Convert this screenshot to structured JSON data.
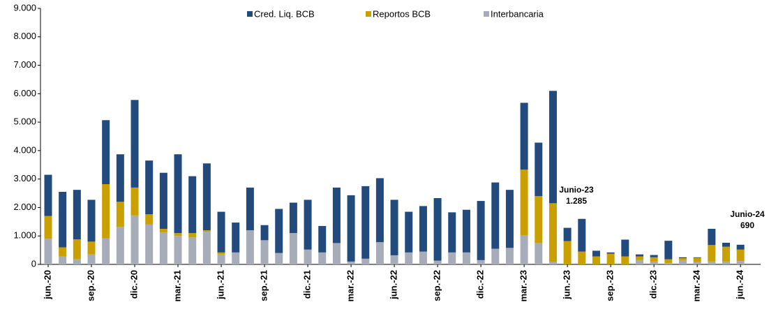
{
  "chart_data": {
    "type": "stacked_bar",
    "categories": [
      "jun.-20",
      null,
      null,
      "sep.-20",
      null,
      null,
      "dic.-20",
      null,
      null,
      "mar.-21",
      null,
      null,
      "jun.-21",
      null,
      null,
      "sep.-21",
      null,
      null,
      "dic.-21",
      null,
      null,
      "mar.-22",
      null,
      null,
      "jun.-22",
      null,
      null,
      "sep.-22",
      null,
      null,
      "dic.-22",
      null,
      null,
      "mar.-23",
      null,
      null,
      "jun.-23",
      null,
      null,
      "sep.-23",
      null,
      null,
      "dic.-23",
      null,
      null,
      "mar.-24",
      null,
      null,
      "jun.-24"
    ],
    "series": [
      {
        "name": "Cred. Liq. BCB",
        "color": "#234a7c",
        "values": [
          1450,
          1950,
          1740,
          1470,
          2250,
          1670,
          3080,
          1890,
          1970,
          2770,
          2000,
          2350,
          1430,
          1050,
          1500,
          530,
          1550,
          1070,
          1750,
          930,
          1950,
          2330,
          2550,
          2250,
          1950,
          1430,
          1600,
          2200,
          1410,
          1500,
          2080,
          2330,
          2040,
          2350,
          1880,
          3950,
          465,
          1150,
          200,
          40,
          590,
          70,
          80,
          650,
          30,
          20,
          570,
          140,
          170
        ]
      },
      {
        "name": "Reportos BCB",
        "color": "#c9a000",
        "values": [
          800,
          320,
          700,
          450,
          1900,
          880,
          980,
          360,
          130,
          100,
          150,
          50,
          70,
          0,
          0,
          0,
          0,
          0,
          0,
          0,
          0,
          0,
          0,
          0,
          0,
          0,
          0,
          0,
          0,
          0,
          0,
          0,
          0,
          2310,
          1650,
          2070,
          820,
          450,
          280,
          380,
          280,
          130,
          150,
          130,
          70,
          150,
          580,
          520,
          400
        ]
      },
      {
        "name": "Interbancaria",
        "color": "#a6adb9",
        "values": [
          900,
          280,
          180,
          350,
          920,
          1320,
          1720,
          1400,
          1120,
          1000,
          950,
          1150,
          350,
          420,
          1200,
          850,
          400,
          1100,
          520,
          420,
          750,
          100,
          200,
          780,
          320,
          420,
          450,
          130,
          420,
          420,
          150,
          550,
          580,
          1020,
          750,
          80,
          0,
          0,
          0,
          0,
          0,
          150,
          100,
          50,
          150,
          80,
          100,
          100,
          120
        ]
      }
    ],
    "ylim": [
      0,
      9000
    ],
    "yticks": [
      0,
      {
        "value": 1000,
        "label": "1.000"
      },
      {
        "value": 2000,
        "label": "2.000"
      },
      {
        "value": 3000,
        "label": "3.000"
      },
      {
        "value": 4000,
        "label": "4.000"
      },
      {
        "value": 5000,
        "label": "5.000"
      },
      {
        "value": 6000,
        "label": "6.000"
      },
      {
        "value": 7000,
        "label": "7.000"
      },
      {
        "value": 8000,
        "label": "8.000"
      },
      {
        "value": 9000,
        "label": "9.000"
      }
    ],
    "annotations": [
      [
        "Junio-23",
        "1.285"
      ],
      [
        "Junio-24",
        "690"
      ]
    ]
  }
}
